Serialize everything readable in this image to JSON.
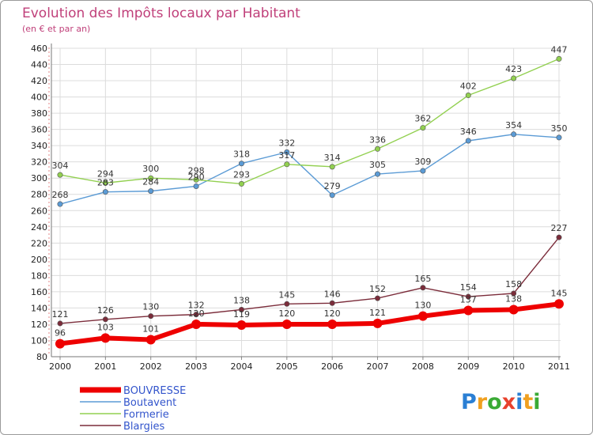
{
  "chart_data": {
    "type": "line",
    "title": "Evolution des Impôts locaux par Habitant",
    "subtitle": "(en € et par an)",
    "xlabel": "",
    "ylabel": "",
    "categories": [
      "2000",
      "2001",
      "2002",
      "2003",
      "2004",
      "2005",
      "2006",
      "2007",
      "2008",
      "2009",
      "2010",
      "2011"
    ],
    "ylim": [
      80,
      460
    ],
    "yticks": [
      80,
      100,
      120,
      140,
      160,
      180,
      200,
      220,
      240,
      260,
      280,
      300,
      320,
      340,
      360,
      380,
      400,
      420,
      440,
      460
    ],
    "grid": true,
    "legend_position": "bottom-left",
    "series": [
      {
        "name": "BOUVRESSE",
        "color": "#ee0000",
        "values": [
          96,
          103,
          101,
          120,
          119,
          120,
          120,
          121,
          130,
          137,
          138,
          145
        ]
      },
      {
        "name": "Boutavent",
        "color": "#5b9bd5",
        "values": [
          268,
          283,
          284,
          290,
          318,
          332,
          279,
          305,
          309,
          346,
          354,
          350
        ]
      },
      {
        "name": "Formerie",
        "color": "#92d050",
        "values": [
          304,
          294,
          300,
          298,
          293,
          317,
          314,
          336,
          362,
          402,
          423,
          447
        ]
      },
      {
        "name": "Blargies",
        "color": "#7b2c3a",
        "values": [
          121,
          126,
          130,
          132,
          138,
          145,
          146,
          152,
          165,
          154,
          158,
          227
        ]
      }
    ]
  },
  "brand": {
    "letters": [
      "P",
      "r",
      "o",
      "x",
      "i",
      "t",
      "i"
    ],
    "colors": [
      "#2a7fd4",
      "#f0a020",
      "#3aaa35",
      "#e8412c",
      "#2a7fd4",
      "#f0a020",
      "#3aaa35"
    ]
  }
}
